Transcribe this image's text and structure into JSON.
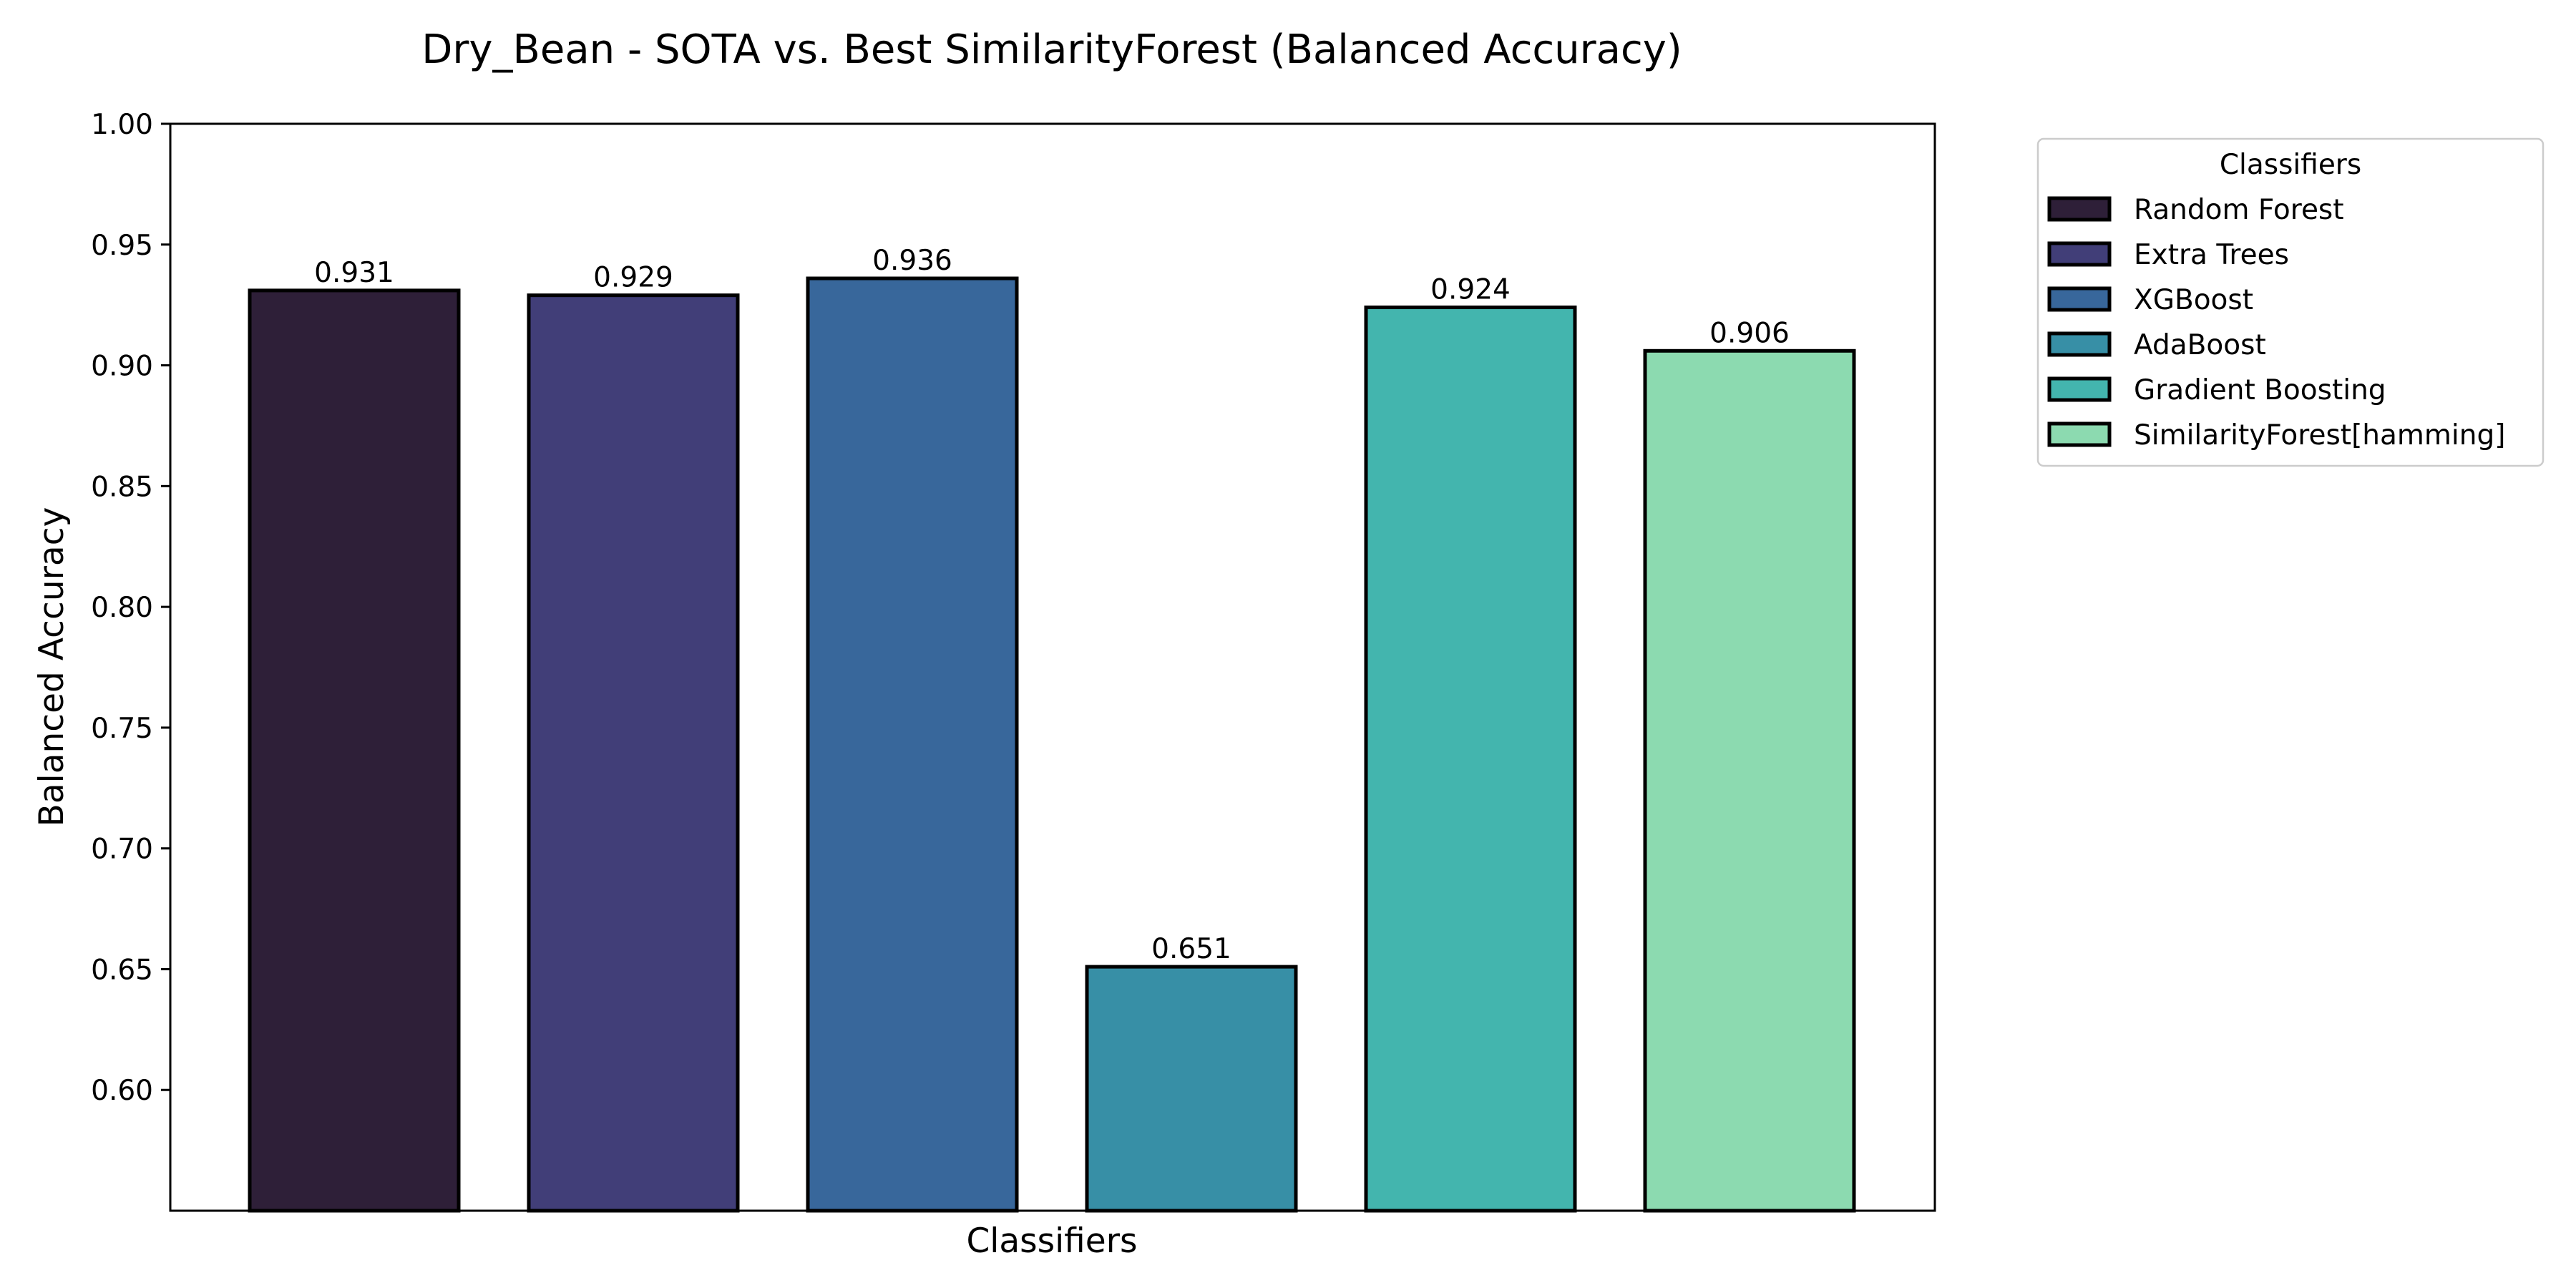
{
  "chart_data": {
    "type": "bar",
    "title": "Dry_Bean - SOTA vs. Best SimilarityForest (Balanced Accuracy)",
    "xlabel": "Classifiers",
    "ylabel": "Balanced Accuracy",
    "ylim": [
      0.55,
      1.0
    ],
    "yticks": [
      "0.60",
      "0.65",
      "0.70",
      "0.75",
      "0.80",
      "0.85",
      "0.90",
      "0.95",
      "1.00"
    ],
    "grid": false,
    "legend_title": "Classifiers",
    "legend_position": "outside-top-right",
    "bars": [
      {
        "name": "Random Forest",
        "value": 0.931,
        "label": "0.931",
        "color": "#2e1f38"
      },
      {
        "name": "Extra Trees",
        "value": 0.929,
        "label": "0.929",
        "color": "#413e78"
      },
      {
        "name": "XGBoost",
        "value": 0.936,
        "label": "0.936",
        "color": "#38679b"
      },
      {
        "name": "AdaBoost",
        "value": 0.651,
        "label": "0.651",
        "color": "#378fa6"
      },
      {
        "name": "Gradient Boosting",
        "value": 0.924,
        "label": "0.924",
        "color": "#43b5ae"
      },
      {
        "name": "SimilarityForest[hamming]",
        "value": 0.906,
        "label": "0.906",
        "color": "#8cdab0"
      }
    ]
  }
}
